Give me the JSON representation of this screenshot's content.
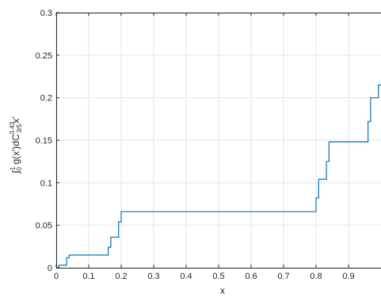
{
  "chart_data": {
    "type": "line",
    "title": "",
    "xlabel": "x",
    "ylabel": {
      "integral_sign": "∫",
      "lower_limit": "0",
      "upper_limit": "1",
      "integrand": "g(x')d",
      "measure_base": "C",
      "measure_sup": "0.43",
      "measure_sub": "3/5",
      "variable": "x'"
    },
    "xlim": [
      0,
      1
    ],
    "ylim": [
      0,
      0.3
    ],
    "grid": true,
    "x_ticks": [
      0,
      0.1,
      0.2,
      0.3,
      0.4,
      0.5,
      0.6,
      0.7,
      0.8,
      0.9
    ],
    "x_tick_labels": [
      "0",
      "0.1",
      "0.2",
      "0.3",
      "0.4",
      "0.5",
      "0.6",
      "0.7",
      "0.8",
      "0.9"
    ],
    "y_ticks": [
      0,
      0.05,
      0.1,
      0.15,
      0.2,
      0.25,
      0.3
    ],
    "y_tick_labels": [
      "0",
      "0.05",
      "0.1",
      "0.15",
      "0.2",
      "0.25",
      "0.3"
    ],
    "colors": {
      "line": "#0072bd",
      "grid": "#e6e6e6",
      "axis": "#262626"
    },
    "series": [
      {
        "x": [
          0,
          0.008,
          0.008,
          0.032,
          0.032,
          0.04,
          0.04,
          0.16,
          0.16,
          0.168,
          0.168,
          0.192,
          0.192,
          0.2,
          0.2,
          0.8,
          0.8,
          0.808,
          0.808,
          0.832,
          0.832,
          0.84,
          0.84,
          0.96,
          0.96,
          0.968,
          0.968,
          0.992,
          0.992,
          1.0
        ],
        "y": [
          0,
          0,
          0.003,
          0.003,
          0.012,
          0.012,
          0.015,
          0.015,
          0.024,
          0.024,
          0.036,
          0.036,
          0.054,
          0.054,
          0.066,
          0.066,
          0.082,
          0.082,
          0.104,
          0.104,
          0.125,
          0.125,
          0.148,
          0.148,
          0.172,
          0.172,
          0.2,
          0.2,
          0.215,
          0.215
        ]
      }
    ]
  }
}
